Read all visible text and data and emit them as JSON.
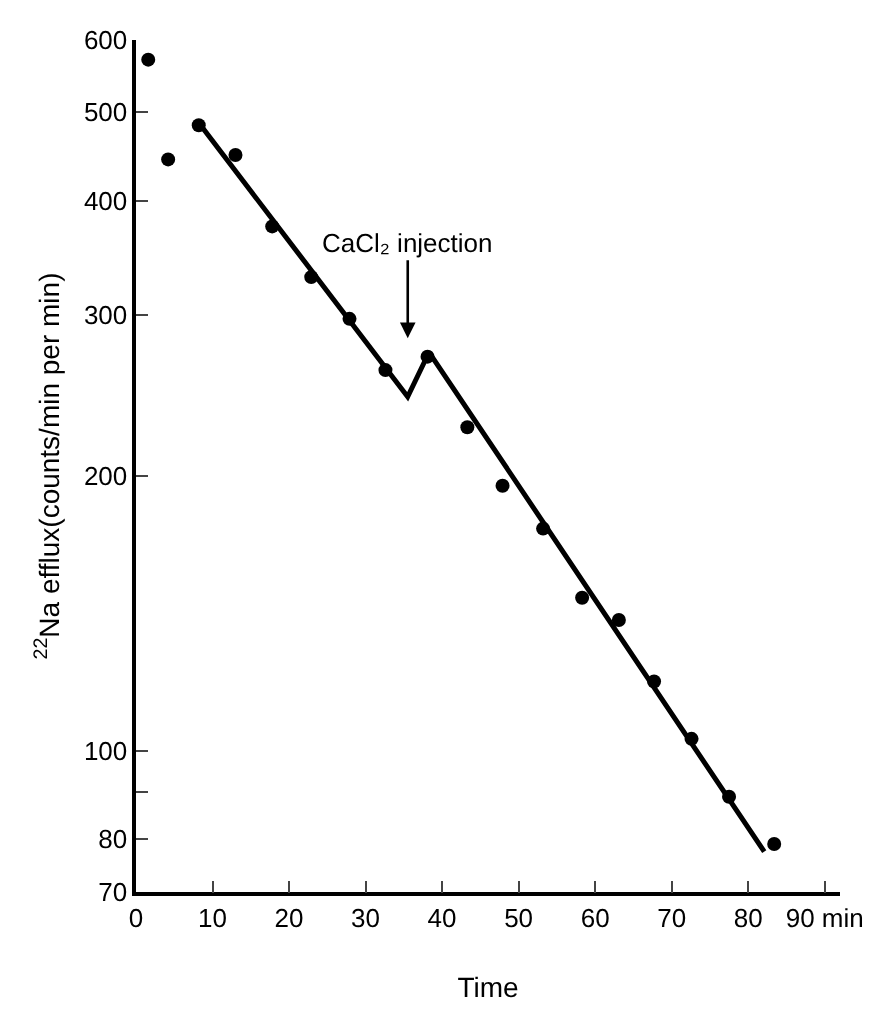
{
  "chart_data": {
    "type": "scatter",
    "xlabel": "Time",
    "ylabel": "$^{22}$Na efflux(counts/min per min)",
    "log": "y",
    "grid": false,
    "marker": "circle",
    "xlim": [
      0,
      92
    ],
    "xticks": [
      0,
      10,
      20,
      30,
      40,
      50,
      60,
      70,
      80,
      {
        "value": 90,
        "label": "90 min"
      }
    ],
    "ylim": [
      70,
      600
    ],
    "yticks": [
      70,
      80,
      {
        "value": 90,
        "label": null
      },
      100,
      200,
      300,
      400,
      500,
      600
    ],
    "annotations": [
      "CaCl₂ injection"
    ],
    "series": [
      {
        "type": "scatter",
        "color": "#000000",
        "x": [
          1.6,
          4.2,
          8.2,
          13,
          17.8,
          22.9,
          27.9,
          32.6,
          38.1,
          43.3,
          47.9,
          53.2,
          58.3,
          63.1,
          67.7,
          72.6,
          77.5,
          83.4
        ],
        "values": [
          571,
          444,
          484,
          449,
          375,
          330,
          297,
          261,
          270,
          226,
          195,
          175,
          147,
          139,
          119,
          103,
          89,
          79
        ]
      },
      {
        "type": "line",
        "color": "#000000",
        "marker": "none",
        "line_style": "solid",
        "x": [
          8.2,
          35.5,
          38.3,
          82.1
        ],
        "values": [
          487,
          244,
          273,
          77.5
        ]
      }
    ]
  }
}
